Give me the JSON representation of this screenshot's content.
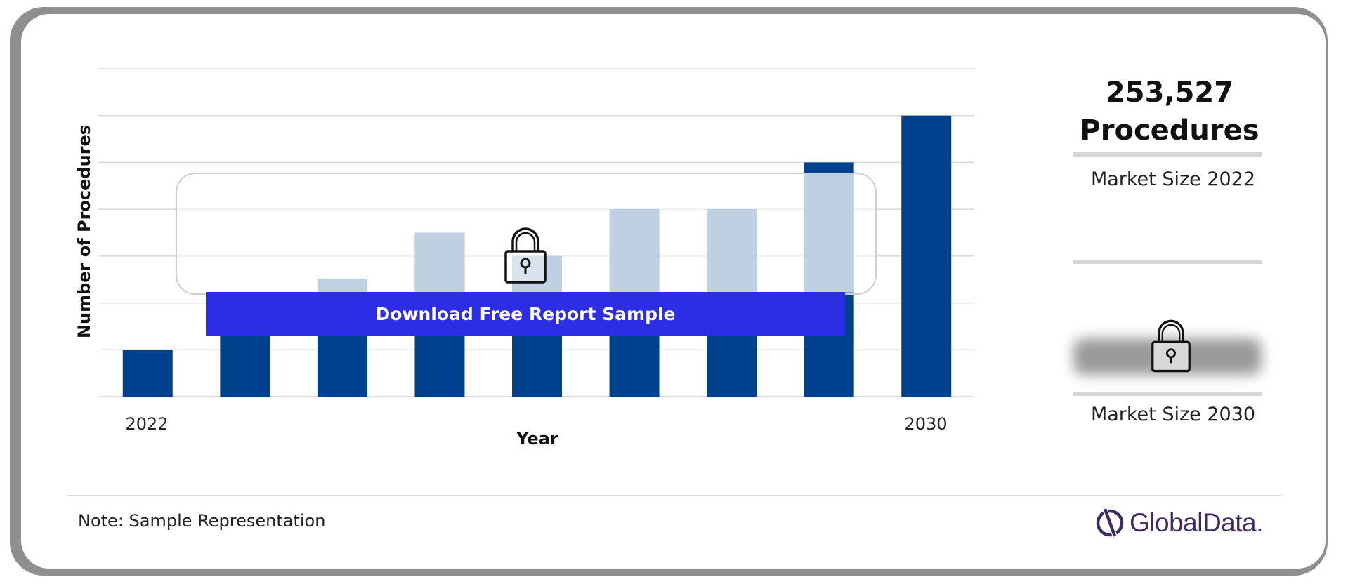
{
  "chart_data": {
    "type": "bar",
    "categories": [
      "2022",
      "",
      "",
      "",
      "",
      "",
      "",
      "",
      "2030"
    ],
    "values": [
      1,
      2,
      2.5,
      3.5,
      3,
      4,
      4,
      5,
      6
    ],
    "value_note": "values are illustrative (sample representation, no y-axis scale printed)",
    "xlabel": "Year",
    "ylabel": "Number of Procedures",
    "x_tick_labels": [
      "2022",
      "2030"
    ],
    "ylim": [
      0,
      7
    ],
    "grid": true,
    "colors": {
      "bar": "#00418e",
      "bar_faded": "#7fa0c6",
      "gridline": "#d9d9d9"
    }
  },
  "overlay": {
    "download_label": "Download Free Report Sample"
  },
  "stats": {
    "value_2022": "253,527",
    "value_2022_unit": "Procedures",
    "caption_2022": "Market Size 2022",
    "caption_2030": "Market Size 2030"
  },
  "footer": {
    "note": "Note: Sample Representation",
    "logo_text": "GlobalData."
  },
  "icons": [
    "lock-icon",
    "globaldata-logo-icon"
  ]
}
